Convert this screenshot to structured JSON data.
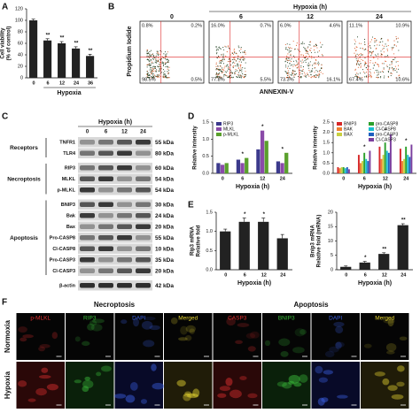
{
  "panel_labels": [
    "A",
    "B",
    "C",
    "D",
    "E",
    "F"
  ],
  "chart_data": [
    {
      "type": "bar",
      "y_label": [
        "Cell viability",
        "(% of control)"
      ],
      "x_label": "Hypoxia",
      "categories": [
        "0",
        "6",
        "12",
        "24",
        "36"
      ],
      "values": [
        100,
        65,
        60,
        51,
        38
      ],
      "errors": [
        2,
        3,
        3,
        3,
        3
      ],
      "annotations": [
        null,
        "**",
        "**",
        "**",
        "**"
      ],
      "color": "#222222",
      "ylim": [
        0,
        120
      ],
      "yticks": [
        0,
        20,
        40,
        60,
        80,
        100,
        120
      ]
    },
    {
      "type": "bar",
      "y_label": [
        "Relative intensity"
      ],
      "x_label": "Hypoxia (h)",
      "categories": [
        "0",
        "6",
        "12",
        "24"
      ],
      "series": [
        {
          "name": "RIP3",
          "color": "#3c3a8c",
          "values": [
            0.3,
            0.4,
            0.7,
            0.35
          ]
        },
        {
          "name": "MLKL",
          "color": "#8a4aa8",
          "values": [
            0.25,
            0.3,
            1.25,
            0.3
          ]
        },
        {
          "name": "p-MLKL",
          "color": "#5aa02c",
          "values": [
            0.3,
            0.45,
            0.95,
            0.6
          ]
        }
      ],
      "annotations": [
        null,
        "*",
        "*",
        "*"
      ],
      "ylim": [
        0,
        1.5
      ],
      "yticks": [
        {
          "value": 0,
          "label": "0.0"
        },
        {
          "value": 0.5,
          "label": "0.5"
        },
        {
          "value": 1,
          "label": "1.0"
        },
        {
          "value": 1.5,
          "label": "1.5"
        }
      ]
    },
    {
      "type": "bar",
      "y_label": [
        "Relative intensity"
      ],
      "x_label": "Hypoxia (h)",
      "categories": [
        "0",
        "6",
        "12",
        "24"
      ],
      "series": [
        {
          "name": "BNIP3",
          "color": "#d62728",
          "values": [
            0.3,
            0.9,
            1.3,
            1.2
          ]
        },
        {
          "name": "BAK",
          "color": "#f08030",
          "values": [
            0.25,
            0.5,
            0.7,
            0.6
          ]
        },
        {
          "name": "BAX",
          "color": "#c8d040",
          "values": [
            0.3,
            0.6,
            0.9,
            0.7
          ]
        },
        {
          "name": "pro-CASP8",
          "color": "#2ca02c",
          "values": [
            0.3,
            1.0,
            1.5,
            1.3
          ]
        },
        {
          "name": "Cl-CASP8",
          "color": "#17becf",
          "values": [
            0.25,
            0.7,
            1.1,
            0.9
          ]
        },
        {
          "name": "pro-CASP3",
          "color": "#1f5fbf",
          "values": [
            0.3,
            0.6,
            1.0,
            0.8
          ]
        },
        {
          "name": "Cl-CASP3",
          "color": "#7b3f9e",
          "values": [
            0.2,
            1.1,
            1.9,
            1.4
          ]
        }
      ],
      "annotations": [
        null,
        "*",
        "*",
        "*"
      ],
      "ylim": [
        0,
        2.5
      ],
      "yticks": [
        {
          "value": 0,
          "label": "0.0"
        },
        {
          "value": 0.5,
          "label": "0.5"
        },
        {
          "value": 1,
          "label": "1.0"
        },
        {
          "value": 1.5,
          "label": "1.5"
        },
        {
          "value": 2,
          "label": "2.0"
        },
        {
          "value": 2.5,
          "label": "2.5"
        }
      ]
    },
    {
      "type": "bar",
      "y_label": [
        "Rip3 mRNA",
        "Relative fold"
      ],
      "x_label": "Hypoxia (h)",
      "categories": [
        "0",
        "6",
        "12",
        "24"
      ],
      "values": [
        1.0,
        1.25,
        1.25,
        0.82
      ],
      "errors": [
        0.06,
        0.1,
        0.1,
        0.1
      ],
      "annotations": [
        null,
        "*",
        "*",
        null
      ],
      "color": "#222222",
      "ylim": [
        0,
        1.5
      ],
      "yticks": [
        {
          "value": 0,
          "label": "0.0"
        },
        {
          "value": 0.5,
          "label": "0.5"
        },
        {
          "value": 1,
          "label": "1.0"
        },
        {
          "value": 1.5,
          "label": "1.5"
        }
      ]
    },
    {
      "type": "bar",
      "y_label": [
        "Bnip3 mRNA",
        "Relative fold (mRNA)"
      ],
      "x_label": "Hypoxia (h)",
      "categories": [
        "0",
        "6",
        "12",
        "24"
      ],
      "values": [
        1,
        2.5,
        5.5,
        15.5
      ],
      "errors": [
        0.3,
        0.4,
        0.4,
        0.5
      ],
      "annotations": [
        null,
        "*",
        "**",
        "**"
      ],
      "color": "#222222",
      "ylim": [
        0,
        20
      ],
      "yticks": [
        0,
        5,
        10,
        15,
        20
      ]
    }
  ],
  "flow": {
    "title": "Hypoxia (h)",
    "y_label": "Propidium Iodide",
    "x_label": "ANNEXIN-V",
    "plots": [
      {
        "label": "0",
        "quadrants": [
          "0.8%",
          "0.2%",
          "98.5%",
          "0.5%"
        ]
      },
      {
        "label": "6",
        "quadrants": [
          "16.0%",
          "0.7%",
          "77.8%",
          "5.5%"
        ]
      },
      {
        "label": "12",
        "quadrants": [
          "6.0%",
          "4.6%",
          "73.3%",
          "16.1%"
        ]
      },
      {
        "label": "24",
        "quadrants": [
          "11.1%",
          "10.9%",
          "67.4%",
          "10.6%"
        ]
      }
    ]
  },
  "blot": {
    "header": "Hypoxia (h)",
    "lanes": [
      "0",
      "6",
      "12",
      "24"
    ],
    "groups": [
      {
        "name": "Receptors",
        "rows": [
          {
            "protein": "TNFR1",
            "size": "55 kDa"
          },
          {
            "protein": "TLR4",
            "size": "80 kDa"
          }
        ]
      },
      {
        "name": "Necroptosis",
        "rows": [
          {
            "protein": "RIP3",
            "size": "60 kDa"
          },
          {
            "protein": "MLKL",
            "size": "54 kDa"
          },
          {
            "protein": "p-MLKL",
            "size": "54 kDa"
          }
        ]
      },
      {
        "name": "Apoptosis",
        "rows": [
          {
            "protein": "BNIP3",
            "size": "30 kDa"
          },
          {
            "protein": "Bak",
            "size": "24 kDa"
          },
          {
            "protein": "Bax",
            "size": "20 kDa"
          },
          {
            "protein": "Pro-CASP8",
            "size": "55 kDa"
          },
          {
            "protein": "Cl-CASP8",
            "size": "10 kDa"
          },
          {
            "protein": "Pro-CASP3",
            "size": "35 kDa"
          },
          {
            "protein": "Cl-CASP3",
            "size": "20 kDa"
          }
        ]
      }
    ],
    "loading": {
      "protein": "β-actin",
      "size": "42 kDa"
    }
  },
  "micrographs": {
    "rows": [
      "Normoxia",
      "Hypoxia"
    ],
    "groups": [
      {
        "title": "Necroptosis",
        "channels": [
          "p-MLKL",
          "RIP3",
          "DAPI",
          "Merged"
        ]
      },
      {
        "title": "Apoptosis",
        "channels": [
          "CASP3",
          "BNIP3",
          "DAPI",
          "Merged"
        ]
      }
    ]
  }
}
